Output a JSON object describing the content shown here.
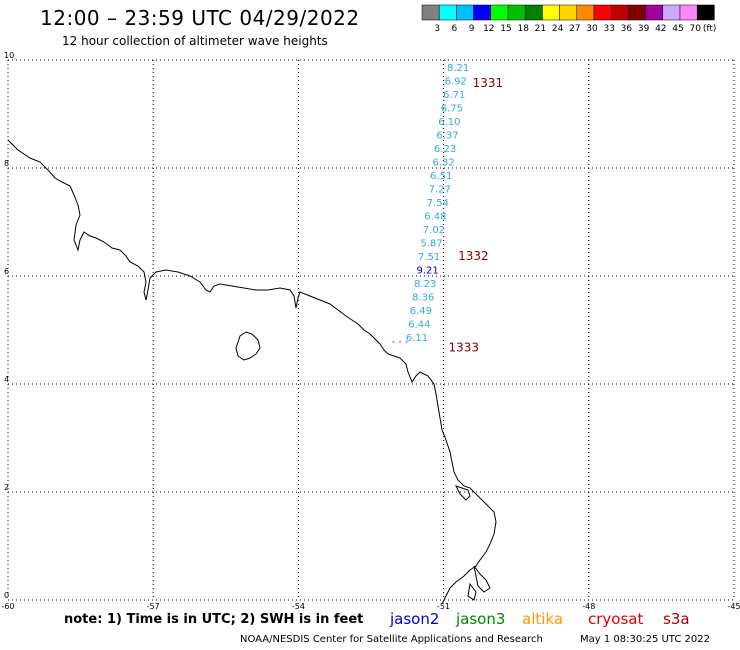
{
  "header": {
    "title": "12:00 – 23:59 UTC 04/29/2022",
    "subtitle": "12 hour collection of altimeter wave heights"
  },
  "legend": {
    "unit": "(ft)",
    "bins": [
      {
        "label": "3",
        "color": "#808080"
      },
      {
        "label": "6",
        "color": "#00ffff"
      },
      {
        "label": "9",
        "color": "#00bfff"
      },
      {
        "label": "12",
        "color": "#0000ff"
      },
      {
        "label": "15",
        "color": "#00ff00"
      },
      {
        "label": "18",
        "color": "#00c000"
      },
      {
        "label": "21",
        "color": "#008000"
      },
      {
        "label": "24",
        "color": "#ffff00"
      },
      {
        "label": "27",
        "color": "#ffd700"
      },
      {
        "label": "30",
        "color": "#ff8c00"
      },
      {
        "label": "33",
        "color": "#ff0000"
      },
      {
        "label": "36",
        "color": "#c00000"
      },
      {
        "label": "39",
        "color": "#800000"
      },
      {
        "label": "42",
        "color": "#a000a0"
      },
      {
        "label": "45",
        "color": "#ccaaff"
      },
      {
        "label": "70",
        "color": "#ff88ff"
      },
      {
        "label": "",
        "color": "#000000"
      }
    ]
  },
  "axes": {
    "x_ticks": [
      "-60",
      "-57",
      "-54",
      "-51",
      "-48",
      "-45"
    ],
    "y_ticks": [
      "10",
      "8",
      "6",
      "4",
      "2",
      "0"
    ],
    "xlim": [
      -60,
      -45
    ],
    "ylim": [
      0,
      10
    ]
  },
  "track": {
    "color_default": "#33aadd",
    "readings": [
      {
        "lon": -50.7,
        "lat": 9.8,
        "value": "8.21"
      },
      {
        "lon": -50.75,
        "lat": 9.55,
        "value": "6.92"
      },
      {
        "lon": -50.78,
        "lat": 9.3,
        "value": "6.71"
      },
      {
        "lon": -50.83,
        "lat": 9.05,
        "value": "6.75"
      },
      {
        "lon": -50.88,
        "lat": 8.8,
        "value": "6.10"
      },
      {
        "lon": -50.92,
        "lat": 8.55,
        "value": "6.37"
      },
      {
        "lon": -50.97,
        "lat": 8.3,
        "value": "6.23"
      },
      {
        "lon": -51.0,
        "lat": 8.05,
        "value": "6.32"
      },
      {
        "lon": -51.05,
        "lat": 7.8,
        "value": "6.51"
      },
      {
        "lon": -51.08,
        "lat": 7.55,
        "value": "7.27"
      },
      {
        "lon": -51.12,
        "lat": 7.3,
        "value": "7.54"
      },
      {
        "lon": -51.17,
        "lat": 7.05,
        "value": "6.48"
      },
      {
        "lon": -51.2,
        "lat": 6.8,
        "value": "7.02"
      },
      {
        "lon": -51.25,
        "lat": 6.55,
        "value": "5.87"
      },
      {
        "lon": -51.3,
        "lat": 6.3,
        "value": "7.51"
      },
      {
        "lon": -51.33,
        "lat": 6.05,
        "value": "9.21",
        "color": "#0000cc"
      },
      {
        "lon": -51.38,
        "lat": 5.8,
        "value": "8.23"
      },
      {
        "lon": -51.42,
        "lat": 5.55,
        "value": "8.36"
      },
      {
        "lon": -51.47,
        "lat": 5.3,
        "value": "6.49"
      },
      {
        "lon": -51.5,
        "lat": 5.05,
        "value": "6.44"
      },
      {
        "lon": -51.55,
        "lat": 4.8,
        "value": "6.11"
      }
    ],
    "pass_labels": [
      {
        "lon": -50.4,
        "lat": 9.5,
        "text": "1331"
      },
      {
        "lon": -50.7,
        "lat": 6.3,
        "text": "1332"
      },
      {
        "lon": -50.9,
        "lat": 4.6,
        "text": "1333"
      }
    ]
  },
  "footer": {
    "note": "note:  1) Time is in UTC; 2) SWH is in feet",
    "credit": "NOAA/NESDIS Center for Satellite Applications and Research",
    "timestamp": "May  1 08:30:25 UTC 2022"
  },
  "satellites": [
    {
      "name": "jason2",
      "color": "#0000cc"
    },
    {
      "name": "jason3",
      "color": "#008800"
    },
    {
      "name": "altika",
      "color": "#ff9900"
    },
    {
      "name": "cryosat",
      "color": "#dd0000"
    },
    {
      "name": "s3a",
      "color": "#aa0000"
    }
  ]
}
